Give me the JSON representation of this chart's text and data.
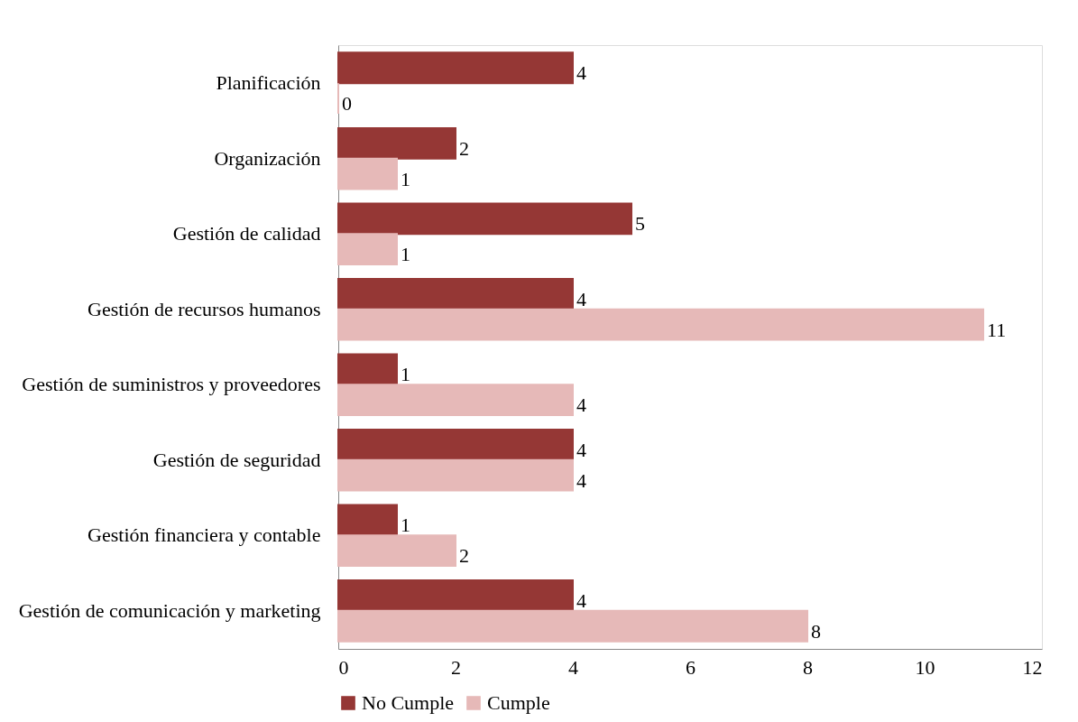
{
  "chart_data": {
    "type": "bar",
    "orientation": "horizontal",
    "categories": [
      "Planificación",
      "Organización",
      "Gestión de calidad",
      "Gestión de recursos humanos",
      "Gestión de suministros y proveedores",
      "Gestión de seguridad",
      "Gestión financiera y contable",
      "Gestión de comunicación y marketing"
    ],
    "series": [
      {
        "name": "No Cumple",
        "color": "#953735",
        "values": [
          4,
          2,
          5,
          4,
          1,
          4,
          1,
          4
        ]
      },
      {
        "name": "Cumple",
        "color": "#e6b9b8",
        "values": [
          0,
          1,
          1,
          11,
          4,
          4,
          2,
          8
        ]
      }
    ],
    "xlim": [
      0,
      12
    ],
    "xticks": [
      0,
      2,
      4,
      6,
      8,
      10,
      12
    ],
    "data_labels": true,
    "legend": "bottom",
    "grid": false
  }
}
